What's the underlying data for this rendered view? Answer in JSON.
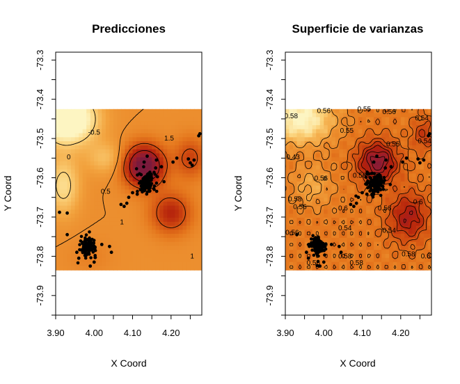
{
  "chart_data": [
    {
      "type": "heatmap",
      "title": "Predicciones",
      "xlabel": "X Coord",
      "ylabel": "Y Coord",
      "xlim": [
        3.9,
        4.28
      ],
      "ylim": [
        -73.95,
        -73.28
      ],
      "xticks": [
        3.9,
        4.0,
        4.1,
        4.2
      ],
      "xtick_labels": [
        "3.90",
        "4.00",
        "4.10",
        "4.20"
      ],
      "yticks": [
        -73.3,
        -73.4,
        -73.5,
        -73.6,
        -73.7,
        -73.8,
        -73.9
      ],
      "ytick_labels": [
        "-73.3",
        "-73.4",
        "-73.5",
        "-73.6",
        "-73.7",
        "-73.8",
        "-73.9"
      ],
      "surface_extent": {
        "x": [
          3.9,
          4.28
        ],
        "y": [
          -73.835,
          -73.425
        ]
      },
      "color_scale": [
        "#fdf5c2",
        "#fbd27a",
        "#f2a23d",
        "#e5771d",
        "#cf4a10",
        "#b3200c",
        "#9c1e2c",
        "#7b1a3c"
      ],
      "contour_labels": [
        {
          "text": "-0.5",
          "x": 4.0,
          "y": -73.485
        },
        {
          "text": "0",
          "x": 3.934,
          "y": -73.548
        },
        {
          "text": "0.5",
          "x": 4.03,
          "y": -73.635
        },
        {
          "text": "1.5",
          "x": 4.195,
          "y": -73.5
        },
        {
          "text": "1",
          "x": 4.072,
          "y": -73.713
        },
        {
          "text": "1",
          "x": 4.255,
          "y": -73.8
        }
      ],
      "clusters": [
        {
          "x": 4.135,
          "y": -73.615,
          "sx": 0.012,
          "sy": 0.013,
          "n": 120
        },
        {
          "x": 3.985,
          "y": -73.775,
          "sx": 0.01,
          "sy": 0.012,
          "n": 110
        }
      ],
      "points": [
        [
          3.91,
          -73.688
        ],
        [
          3.93,
          -73.69
        ],
        [
          3.93,
          -73.745
        ],
        [
          3.955,
          -73.79
        ],
        [
          3.96,
          -73.805
        ],
        [
          4.02,
          -73.77
        ],
        [
          4.04,
          -73.775
        ],
        [
          4.045,
          -73.79
        ],
        [
          4.0,
          -73.815
        ],
        [
          3.99,
          -73.825
        ],
        [
          4.07,
          -73.668
        ],
        [
          4.078,
          -73.673
        ],
        [
          4.085,
          -73.665
        ],
        [
          4.09,
          -73.65
        ],
        [
          4.1,
          -73.638
        ],
        [
          4.112,
          -73.642
        ],
        [
          4.16,
          -73.575
        ],
        [
          4.175,
          -73.572
        ],
        [
          4.162,
          -73.555
        ],
        [
          4.205,
          -73.56
        ],
        [
          4.215,
          -73.55
        ],
        [
          4.245,
          -73.552
        ],
        [
          4.25,
          -73.562
        ],
        [
          4.255,
          -73.568
        ],
        [
          4.26,
          -73.555
        ],
        [
          4.275,
          -73.488
        ],
        [
          4.272,
          -73.493
        ],
        [
          4.13,
          -73.56
        ],
        [
          4.118,
          -73.59
        ],
        [
          4.138,
          -73.545
        ]
      ]
    },
    {
      "type": "heatmap",
      "title": "Superficie de varianzas",
      "xlabel": "X Coord",
      "ylabel": "Y Coord",
      "xlim": [
        3.9,
        4.28
      ],
      "ylim": [
        -73.95,
        -73.28
      ],
      "xticks": [
        3.9,
        4.0,
        4.1,
        4.2
      ],
      "xtick_labels": [
        "3.90",
        "4.00",
        "4.10",
        "4.20"
      ],
      "yticks": [
        -73.3,
        -73.4,
        -73.5,
        -73.6,
        -73.7,
        -73.8,
        -73.9
      ],
      "ytick_labels": [
        "-73.3",
        "-73.4",
        "-73.5",
        "-73.6",
        "-73.7",
        "-73.8",
        "-73.9"
      ],
      "surface_extent": {
        "x": [
          3.9,
          4.28
        ],
        "y": [
          -73.835,
          -73.425
        ]
      },
      "color_scale": [
        "#fdf5c2",
        "#fbd27a",
        "#f2a23d",
        "#e5771d",
        "#cf4a10",
        "#b3200c",
        "#9c1e2c",
        "#7b1a3c"
      ],
      "contour_labels": [
        {
          "text": "0.58",
          "x": 3.915,
          "y": -73.443
        },
        {
          "text": "0.56",
          "x": 4.0,
          "y": -73.43
        },
        {
          "text": "0.55",
          "x": 4.06,
          "y": -73.48
        },
        {
          "text": "0.55",
          "x": 4.105,
          "y": -73.425
        },
        {
          "text": "0.56",
          "x": 4.17,
          "y": -73.432
        },
        {
          "text": "0.55",
          "x": 4.18,
          "y": -73.515
        },
        {
          "text": "0.54",
          "x": 4.255,
          "y": -73.448
        },
        {
          "text": "0.54",
          "x": 4.262,
          "y": -73.507
        },
        {
          "text": "0.43",
          "x": 3.92,
          "y": -73.548
        },
        {
          "text": "0.56",
          "x": 3.993,
          "y": -73.602
        },
        {
          "text": "0.56",
          "x": 4.093,
          "y": -73.595
        },
        {
          "text": "0.58",
          "x": 3.925,
          "y": -73.655
        },
        {
          "text": "0.56",
          "x": 3.938,
          "y": -73.674
        },
        {
          "text": "0.6",
          "x": 4.05,
          "y": -73.678
        },
        {
          "text": "0.56",
          "x": 4.158,
          "y": -73.678
        },
        {
          "text": "0.6",
          "x": 4.245,
          "y": -73.662
        },
        {
          "text": "0.56",
          "x": 3.918,
          "y": -73.74
        },
        {
          "text": "0.54",
          "x": 4.055,
          "y": -73.728
        },
        {
          "text": "0.54",
          "x": 4.17,
          "y": -73.735
        },
        {
          "text": "0.58",
          "x": 4.055,
          "y": -73.8
        },
        {
          "text": "0.56",
          "x": 3.973,
          "y": -73.817
        },
        {
          "text": "0.58",
          "x": 4.085,
          "y": -73.817
        },
        {
          "text": "0.58",
          "x": 4.22,
          "y": -73.795
        },
        {
          "text": "0.6",
          "x": 4.265,
          "y": -73.8
        }
      ],
      "clusters": [
        {
          "x": 4.135,
          "y": -73.615,
          "sx": 0.012,
          "sy": 0.013,
          "n": 120
        },
        {
          "x": 3.985,
          "y": -73.775,
          "sx": 0.01,
          "sy": 0.012,
          "n": 110
        }
      ],
      "points": [
        [
          3.93,
          -73.745
        ],
        [
          3.955,
          -73.79
        ],
        [
          3.96,
          -73.805
        ],
        [
          4.02,
          -73.77
        ],
        [
          4.04,
          -73.775
        ],
        [
          4.045,
          -73.79
        ],
        [
          4.0,
          -73.815
        ],
        [
          3.99,
          -73.825
        ],
        [
          4.07,
          -73.668
        ],
        [
          4.078,
          -73.673
        ],
        [
          4.085,
          -73.665
        ],
        [
          4.09,
          -73.65
        ],
        [
          4.1,
          -73.638
        ],
        [
          4.112,
          -73.642
        ],
        [
          4.16,
          -73.575
        ],
        [
          4.175,
          -73.572
        ],
        [
          4.162,
          -73.555
        ],
        [
          4.205,
          -73.56
        ],
        [
          4.215,
          -73.55
        ],
        [
          4.245,
          -73.552
        ],
        [
          4.25,
          -73.562
        ],
        [
          4.26,
          -73.555
        ],
        [
          4.275,
          -73.488
        ],
        [
          4.272,
          -73.493
        ],
        [
          4.13,
          -73.56
        ],
        [
          4.118,
          -73.59
        ],
        [
          4.138,
          -73.545
        ]
      ]
    }
  ]
}
